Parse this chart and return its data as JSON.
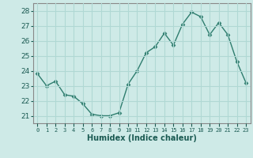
{
  "x": [
    0,
    1,
    2,
    3,
    4,
    5,
    6,
    7,
    8,
    9,
    10,
    11,
    12,
    13,
    14,
    15,
    16,
    17,
    18,
    19,
    20,
    21,
    22,
    23
  ],
  "y": [
    23.8,
    23.0,
    23.3,
    22.4,
    22.3,
    21.8,
    21.1,
    21.0,
    21.0,
    21.2,
    23.1,
    24.0,
    25.2,
    25.6,
    26.5,
    25.7,
    27.1,
    27.9,
    27.6,
    26.4,
    27.2,
    26.4,
    24.6,
    23.2
  ],
  "line_color": "#2e7d6e",
  "marker": "D",
  "marker_size": 2.5,
  "bg_color": "#ceeae7",
  "grid_color": "#b0d8d4",
  "xlabel": "Humidex (Indice chaleur)",
  "ylabel_ticks": [
    21,
    22,
    23,
    24,
    25,
    26,
    27,
    28
  ],
  "xlim": [
    -0.5,
    23.5
  ],
  "ylim": [
    20.5,
    28.5
  ],
  "tick_label_color": "#1a5a52"
}
